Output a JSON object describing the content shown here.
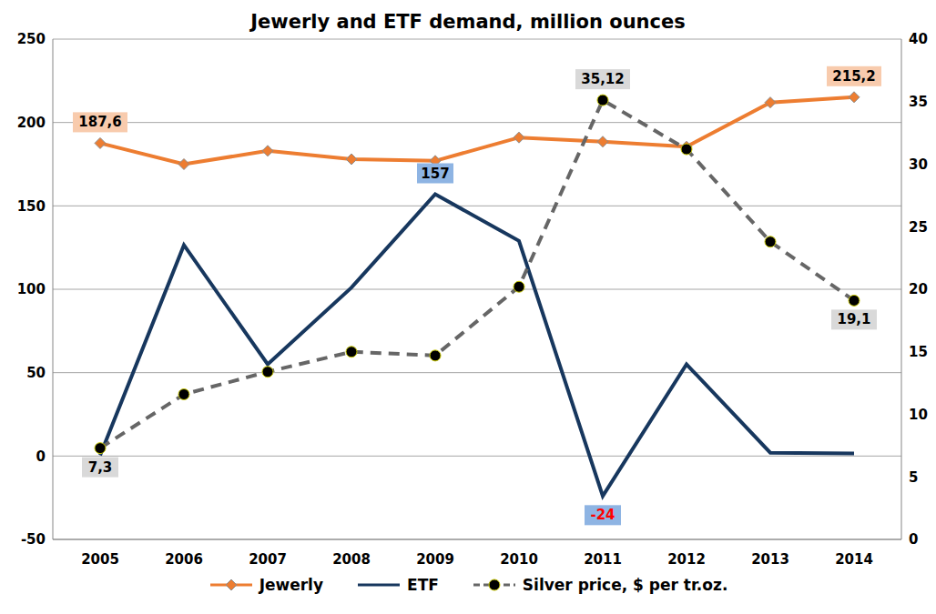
{
  "chart_data": {
    "type": "line",
    "title": "Jewerly and ETF demand, million ounces",
    "categories": [
      "2005",
      "2006",
      "2007",
      "2008",
      "2009",
      "2010",
      "2011",
      "2012",
      "2013",
      "2014"
    ],
    "series": [
      {
        "name": "Jewerly",
        "color": "#ed7d31",
        "marker": "diamond",
        "line_style": "solid",
        "values": [
          187.6,
          175,
          183,
          178,
          177,
          191,
          188.5,
          185.5,
          212,
          215.2
        ],
        "value_labels": [
          "187,6",
          null,
          null,
          null,
          null,
          null,
          null,
          null,
          null,
          "215,2"
        ]
      },
      {
        "name": "ETF",
        "color": "#17375e",
        "marker": "none",
        "line_style": "solid",
        "values": [
          0.5,
          126.5,
          55,
          101,
          157,
          129,
          -24,
          55,
          2,
          1.5
        ],
        "value_labels": [
          null,
          null,
          null,
          null,
          "157",
          null,
          "-24",
          null,
          null,
          null
        ]
      },
      {
        "name": "Silver price, $ per tr.oz.",
        "color": "#666666",
        "marker": "circle",
        "line_style": "dashed",
        "axis": "y2",
        "values": [
          7.3,
          11.6,
          13.4,
          15.0,
          14.7,
          20.2,
          35.12,
          31.2,
          23.8,
          19.1
        ],
        "value_labels": [
          "7,3",
          null,
          null,
          null,
          null,
          null,
          "35,12",
          null,
          null,
          "19,1"
        ]
      }
    ],
    "ylim": [
      -50,
      250
    ],
    "yticks": [
      -50,
      0,
      50,
      100,
      150,
      200,
      250
    ],
    "y2lim": [
      0,
      40
    ],
    "y2ticks": [
      0,
      5,
      10,
      15,
      20,
      25,
      30,
      35,
      40
    ],
    "grid": true,
    "legend": "bottom",
    "data_labels": true
  }
}
